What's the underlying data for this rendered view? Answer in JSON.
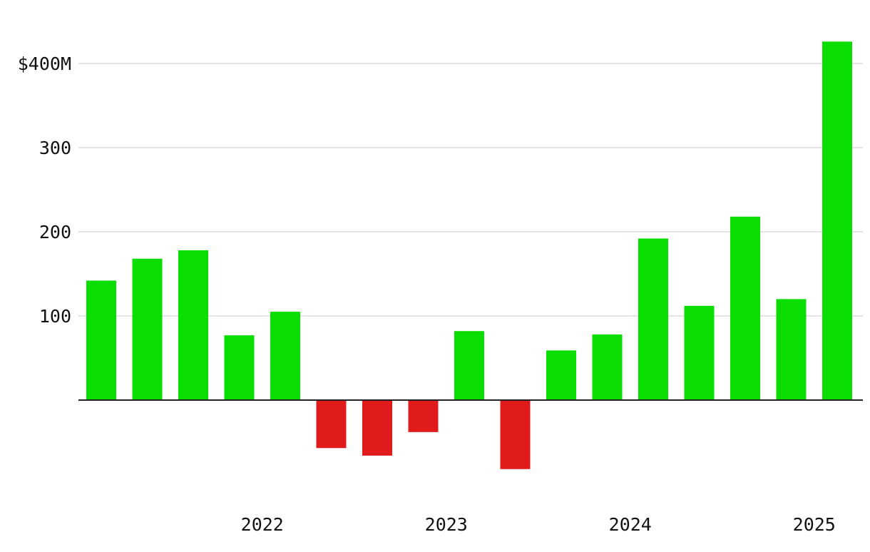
{
  "chart_data": {
    "type": "bar",
    "title": "",
    "xlabel": "",
    "ylabel": "",
    "ylim": [
      -110,
      430
    ],
    "y_ticks": [
      {
        "value": 100,
        "label": "100"
      },
      {
        "value": 200,
        "label": "200"
      },
      {
        "value": 300,
        "label": "300"
      },
      {
        "value": 400,
        "label": "$400M"
      }
    ],
    "x_ticks": [
      {
        "after_bar_index": 3,
        "label": "2022"
      },
      {
        "after_bar_index": 7,
        "label": "2023"
      },
      {
        "after_bar_index": 11,
        "label": "2024"
      },
      {
        "after_bar_index": 15,
        "label": "2025"
      }
    ],
    "values": [
      142,
      168,
      178,
      77,
      105,
      -57,
      -66,
      -38,
      82,
      -82,
      59,
      78,
      192,
      112,
      218,
      120,
      426
    ],
    "grid": true,
    "colors": {
      "positive": "#0ade00",
      "negative": "#e01b1b",
      "grid": "#dcdcdc",
      "axis": "#222222",
      "text": "#111111"
    }
  }
}
